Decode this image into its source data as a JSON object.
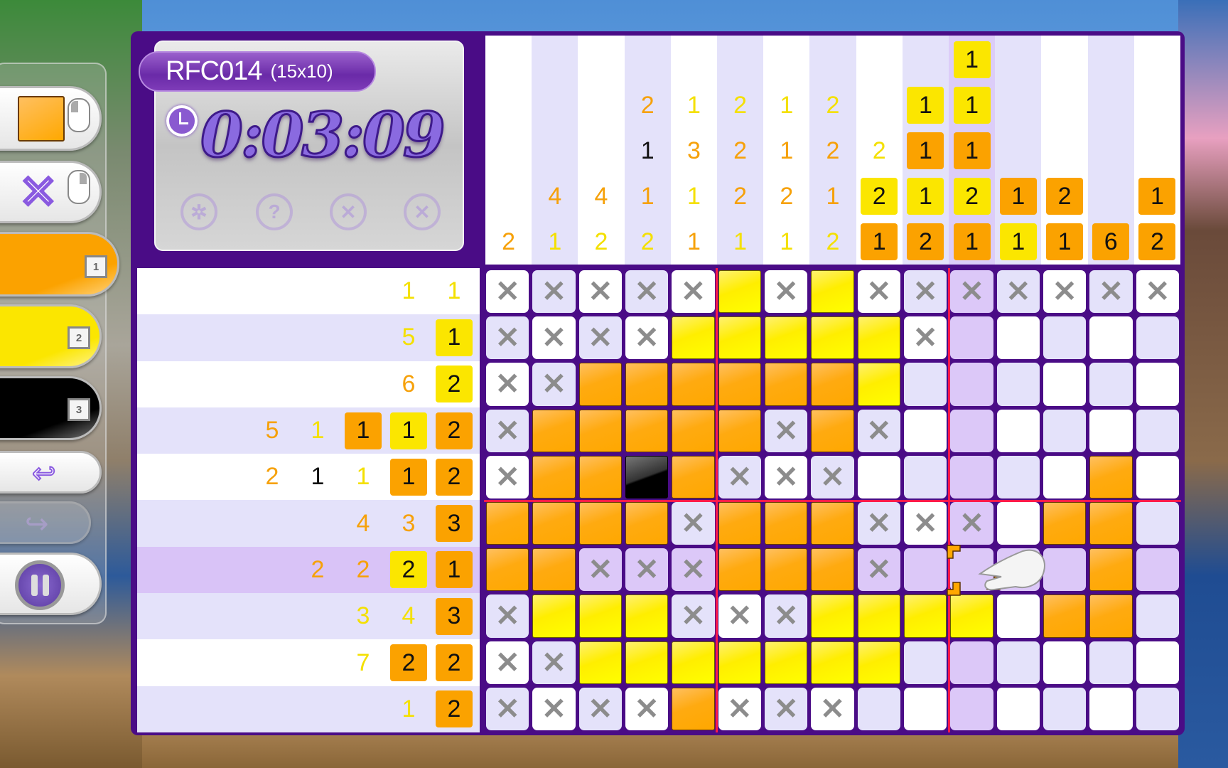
{
  "puzzle": {
    "code": "RFC014",
    "size": "(15x10)",
    "timer": "0:03:09"
  },
  "info_tools": [
    {
      "icon": "hint-wheel-icon",
      "glyph": "✲"
    },
    {
      "icon": "help-icon",
      "glyph": "?"
    },
    {
      "icon": "reset-icon",
      "glyph": "✕"
    },
    {
      "icon": "check-icon",
      "glyph": "✕"
    }
  ],
  "toolbar": {
    "fill_tool": {
      "icon": "fill-swatch-icon",
      "mouse": "left-click"
    },
    "cross_tool": {
      "icon": "cross-icon",
      "mouse": "right-click"
    },
    "colors": [
      {
        "name": "orange",
        "hex": "#fba200",
        "key": "1",
        "selected": true
      },
      {
        "name": "yellow",
        "hex": "#fbe600",
        "key": "2"
      },
      {
        "name": "black",
        "hex": "#000000",
        "key": "3"
      }
    ],
    "undo": {
      "icon": "undo-icon"
    },
    "redo": {
      "icon": "redo-icon",
      "enabled": false
    },
    "pause": {
      "icon": "pause-icon"
    }
  },
  "palette": {
    "o": "#fba200",
    "y": "#fbe600",
    "k": "#000000"
  },
  "column_clues": [
    [
      {
        "n": "2",
        "c": "o"
      }
    ],
    [
      {
        "n": "4",
        "c": "o"
      },
      {
        "n": "1",
        "c": "y"
      }
    ],
    [
      {
        "n": "4",
        "c": "o"
      },
      {
        "n": "2",
        "c": "y"
      }
    ],
    [
      {
        "n": "2",
        "c": "o"
      },
      {
        "n": "1",
        "c": "k"
      },
      {
        "n": "1",
        "c": "o"
      },
      {
        "n": "2",
        "c": "y"
      }
    ],
    [
      {
        "n": "1",
        "c": "y"
      },
      {
        "n": "3",
        "c": "o"
      },
      {
        "n": "1",
        "c": "y"
      },
      {
        "n": "1",
        "c": "o"
      }
    ],
    [
      {
        "n": "2",
        "c": "y"
      },
      {
        "n": "2",
        "c": "o"
      },
      {
        "n": "2",
        "c": "o"
      },
      {
        "n": "1",
        "c": "y"
      }
    ],
    [
      {
        "n": "1",
        "c": "y"
      },
      {
        "n": "1",
        "c": "o"
      },
      {
        "n": "2",
        "c": "o"
      },
      {
        "n": "1",
        "c": "y"
      }
    ],
    [
      {
        "n": "2",
        "c": "y"
      },
      {
        "n": "2",
        "c": "o"
      },
      {
        "n": "1",
        "c": "o"
      },
      {
        "n": "2",
        "c": "y"
      }
    ],
    [
      {
        "n": "2",
        "c": "y"
      },
      {
        "n": "2",
        "c": "y",
        "b": true
      },
      {
        "n": "1",
        "c": "o",
        "b": true
      }
    ],
    [
      {
        "n": "1",
        "c": "y",
        "b": true
      },
      {
        "n": "1",
        "c": "o",
        "b": true
      },
      {
        "n": "1",
        "c": "y",
        "b": true
      },
      {
        "n": "2",
        "c": "o",
        "b": true
      }
    ],
    [
      {
        "n": "1",
        "c": "y",
        "b": true
      },
      {
        "n": "1",
        "c": "y",
        "b": true
      },
      {
        "n": "1",
        "c": "o",
        "b": true
      },
      {
        "n": "2",
        "c": "y",
        "b": true
      },
      {
        "n": "1",
        "c": "o",
        "b": true
      }
    ],
    [
      {
        "n": "1",
        "c": "o",
        "b": true
      },
      {
        "n": "1",
        "c": "y",
        "b": true
      }
    ],
    [
      {
        "n": "2",
        "c": "o",
        "b": true
      },
      {
        "n": "1",
        "c": "o",
        "b": true
      }
    ],
    [
      {
        "n": "6",
        "c": "o",
        "b": true
      }
    ],
    [
      {
        "n": "1",
        "c": "o",
        "b": true
      },
      {
        "n": "2",
        "c": "o",
        "b": true
      }
    ]
  ],
  "row_clues": [
    [
      {
        "n": "1",
        "c": "y"
      },
      {
        "n": "1",
        "c": "y"
      }
    ],
    [
      {
        "n": "5",
        "c": "y"
      },
      {
        "n": "1",
        "c": "y",
        "b": true
      }
    ],
    [
      {
        "n": "6",
        "c": "o"
      },
      {
        "n": "2",
        "c": "y",
        "b": true
      }
    ],
    [
      {
        "n": "5",
        "c": "o"
      },
      {
        "n": "1",
        "c": "y"
      },
      {
        "n": "1",
        "c": "o",
        "b": true
      },
      {
        "n": "1",
        "c": "y",
        "b": true
      },
      {
        "n": "2",
        "c": "o",
        "b": true
      }
    ],
    [
      {
        "n": "2",
        "c": "o"
      },
      {
        "n": "1",
        "c": "k"
      },
      {
        "n": "1",
        "c": "y"
      },
      {
        "n": "1",
        "c": "o",
        "b": true
      },
      {
        "n": "2",
        "c": "o",
        "b": true
      }
    ],
    [
      {
        "n": "4",
        "c": "o"
      },
      {
        "n": "3",
        "c": "o"
      },
      {
        "n": "3",
        "c": "o",
        "b": true
      }
    ],
    [
      {
        "n": "2",
        "c": "o"
      },
      {
        "n": "2",
        "c": "o"
      },
      {
        "n": "2",
        "c": "y",
        "b": true
      },
      {
        "n": "1",
        "c": "o",
        "b": true
      }
    ],
    [
      {
        "n": "3",
        "c": "y"
      },
      {
        "n": "4",
        "c": "y"
      },
      {
        "n": "3",
        "c": "o",
        "b": true
      }
    ],
    [
      {
        "n": "7",
        "c": "y"
      },
      {
        "n": "2",
        "c": "o",
        "b": true
      },
      {
        "n": "2",
        "c": "o",
        "b": true
      }
    ],
    [
      {
        "n": "1",
        "c": "y"
      },
      {
        "n": "2",
        "c": "o",
        "b": true
      }
    ]
  ],
  "grid": [
    "xxxxxyxyxxxxxxx",
    "xxxxyyyyyx.....",
    "xxooooooy......",
    "xoooooxox......",
    "xookoxxx.....o.",
    "ooooxoooxxx.oo.",
    "ooxxxooox....o.",
    "xyyyxxxyyyy.oo.",
    "xxyyyyyyy......",
    "xxxxoxxx......."
  ],
  "cursor": {
    "row": 7,
    "col": 11
  },
  "cross_glyph": "✕"
}
